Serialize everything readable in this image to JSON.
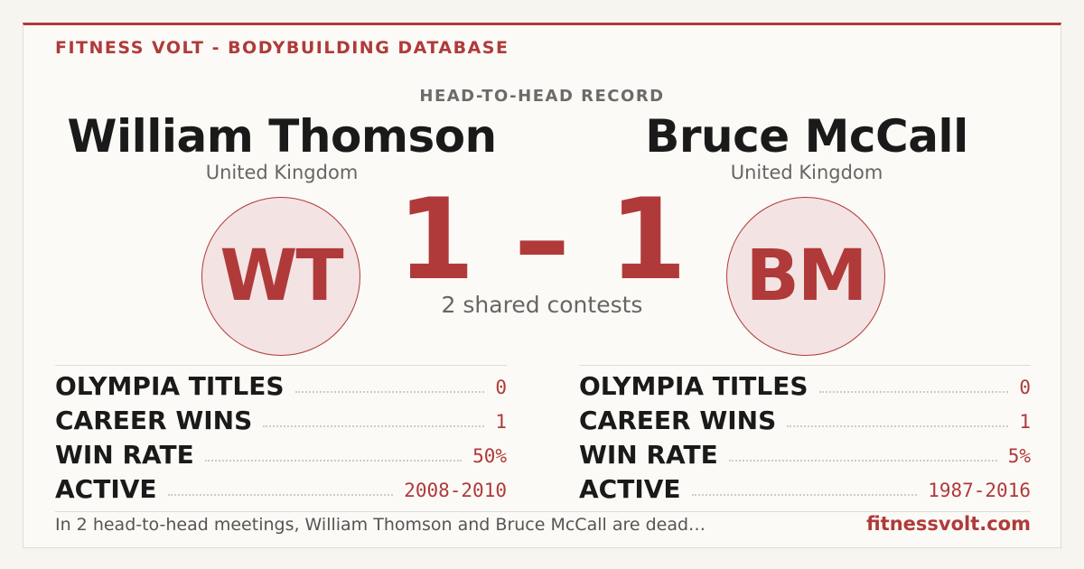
{
  "header": {
    "site": "FITNESS VOLT - BODYBUILDING DATABASE",
    "section": "HEAD-TO-HEAD RECORD"
  },
  "players": [
    {
      "name": "William Thomson",
      "country": "United Kingdom",
      "initials": "WT",
      "stats": [
        {
          "label": "OLYMPIA TITLES",
          "value": "0"
        },
        {
          "label": "CAREER WINS",
          "value": "1"
        },
        {
          "label": "WIN RATE",
          "value": "50%"
        },
        {
          "label": "ACTIVE",
          "value": "2008-2010"
        }
      ]
    },
    {
      "name": "Bruce McCall",
      "country": "United Kingdom",
      "initials": "BM",
      "stats": [
        {
          "label": "OLYMPIA TITLES",
          "value": "0"
        },
        {
          "label": "CAREER WINS",
          "value": "1"
        },
        {
          "label": "WIN RATE",
          "value": "5%"
        },
        {
          "label": "ACTIVE",
          "value": "1987-2016"
        }
      ]
    }
  ],
  "score": "1 – 1",
  "shared": "2 shared contests",
  "footer": {
    "summary": "In 2 head-to-head meetings, William Thomson and Bruce McCall are dead…",
    "domain": "fitnessvolt.com"
  }
}
